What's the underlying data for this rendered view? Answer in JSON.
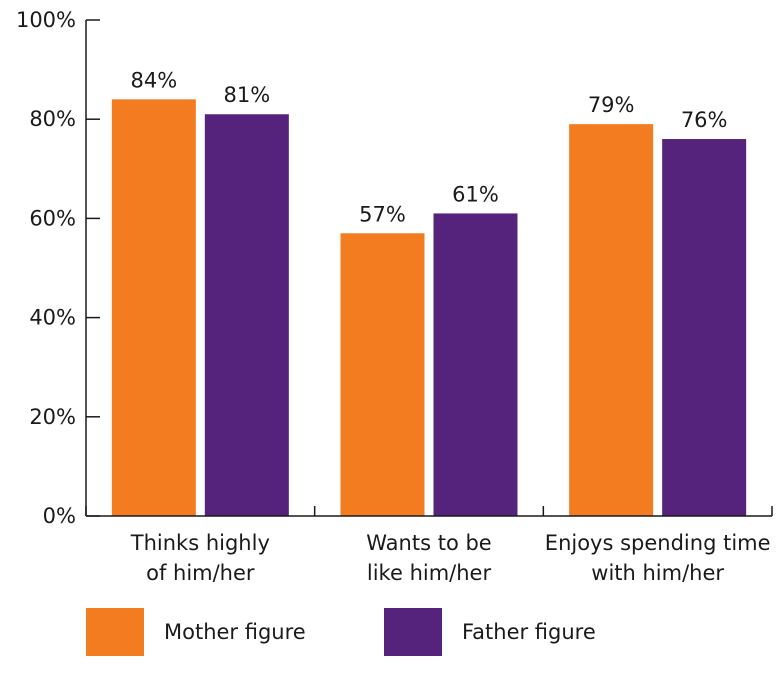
{
  "chart_data": {
    "type": "bar",
    "categories": [
      [
        "Thinks highly",
        "of him/her"
      ],
      [
        "Wants to be",
        "like him/her"
      ],
      [
        "Enjoys spending time",
        "with him/her"
      ]
    ],
    "series": [
      {
        "name": "Mother figure",
        "color": "#F37B20",
        "values": [
          84,
          57,
          79
        ],
        "labels": [
          "84%",
          "57%",
          "79%"
        ]
      },
      {
        "name": "Father figure",
        "color": "#55237C",
        "values": [
          81,
          61,
          76
        ],
        "labels": [
          "81%",
          "61%",
          "76%"
        ]
      }
    ],
    "y_ticks": [
      {
        "value": 0,
        "label": "0%"
      },
      {
        "value": 20,
        "label": "20%"
      },
      {
        "value": 40,
        "label": "40%"
      },
      {
        "value": 60,
        "label": "60%"
      },
      {
        "value": 80,
        "label": "80%"
      },
      {
        "value": 100,
        "label": "100%"
      }
    ],
    "ylim": [
      0,
      100
    ],
    "grid": false,
    "legend_position": "bottom"
  }
}
